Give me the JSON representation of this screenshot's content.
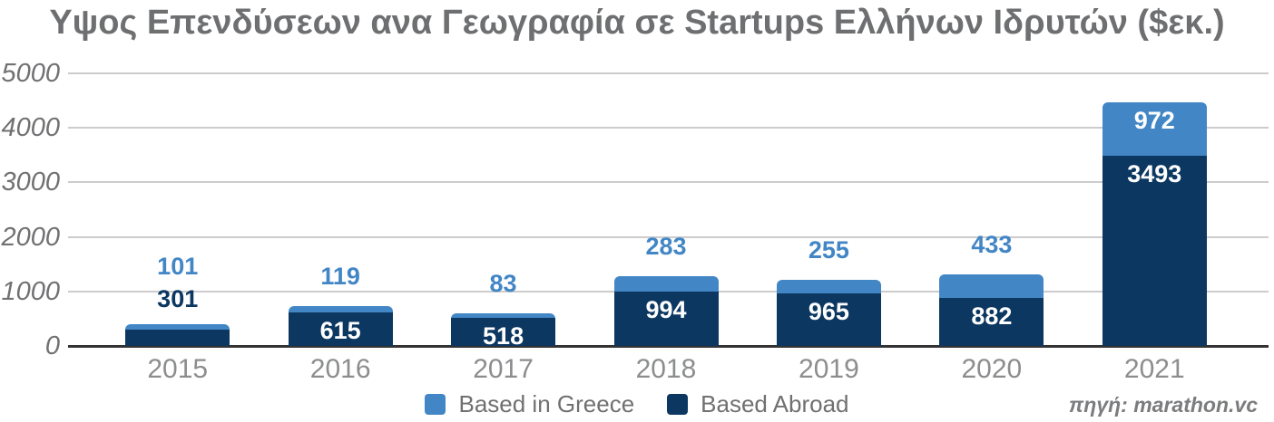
{
  "title": "Υψος Επενδύσεων ανα Γεωγραφία σε Startups Ελλήνων Ιδρυτών ($εκ.)",
  "source": "πηγή: marathon.vc",
  "colors": {
    "based_in_greece": "#4286c6",
    "based_abroad": "#0c3761",
    "gridline": "#cccccc",
    "axis": "#333333",
    "title_text": "#6e6f71",
    "tick_text": "#8c8d8f"
  },
  "chart_data": {
    "type": "bar",
    "stacked": true,
    "title": "Υψος Επενδύσεων ανα Γεωγραφία σε Startups Ελλήνων Ιδρυτών ($εκ.)",
    "categories": [
      "2015",
      "2016",
      "2017",
      "2018",
      "2019",
      "2020",
      "2021"
    ],
    "series": [
      {
        "name": "Based in Greece",
        "color": "#4286c6",
        "values": [
          101,
          119,
          83,
          283,
          255,
          433,
          972
        ]
      },
      {
        "name": "Based Abroad",
        "color": "#0c3761",
        "values": [
          301,
          615,
          518,
          994,
          965,
          882,
          3493
        ]
      }
    ],
    "xlabel": "",
    "ylabel": "",
    "ylim": [
      0,
      5000
    ],
    "yticks": [
      0,
      1000,
      2000,
      3000,
      4000,
      5000
    ],
    "grid": true,
    "legend_position": "bottom",
    "annotations": "each bar segment labeled with its value"
  }
}
